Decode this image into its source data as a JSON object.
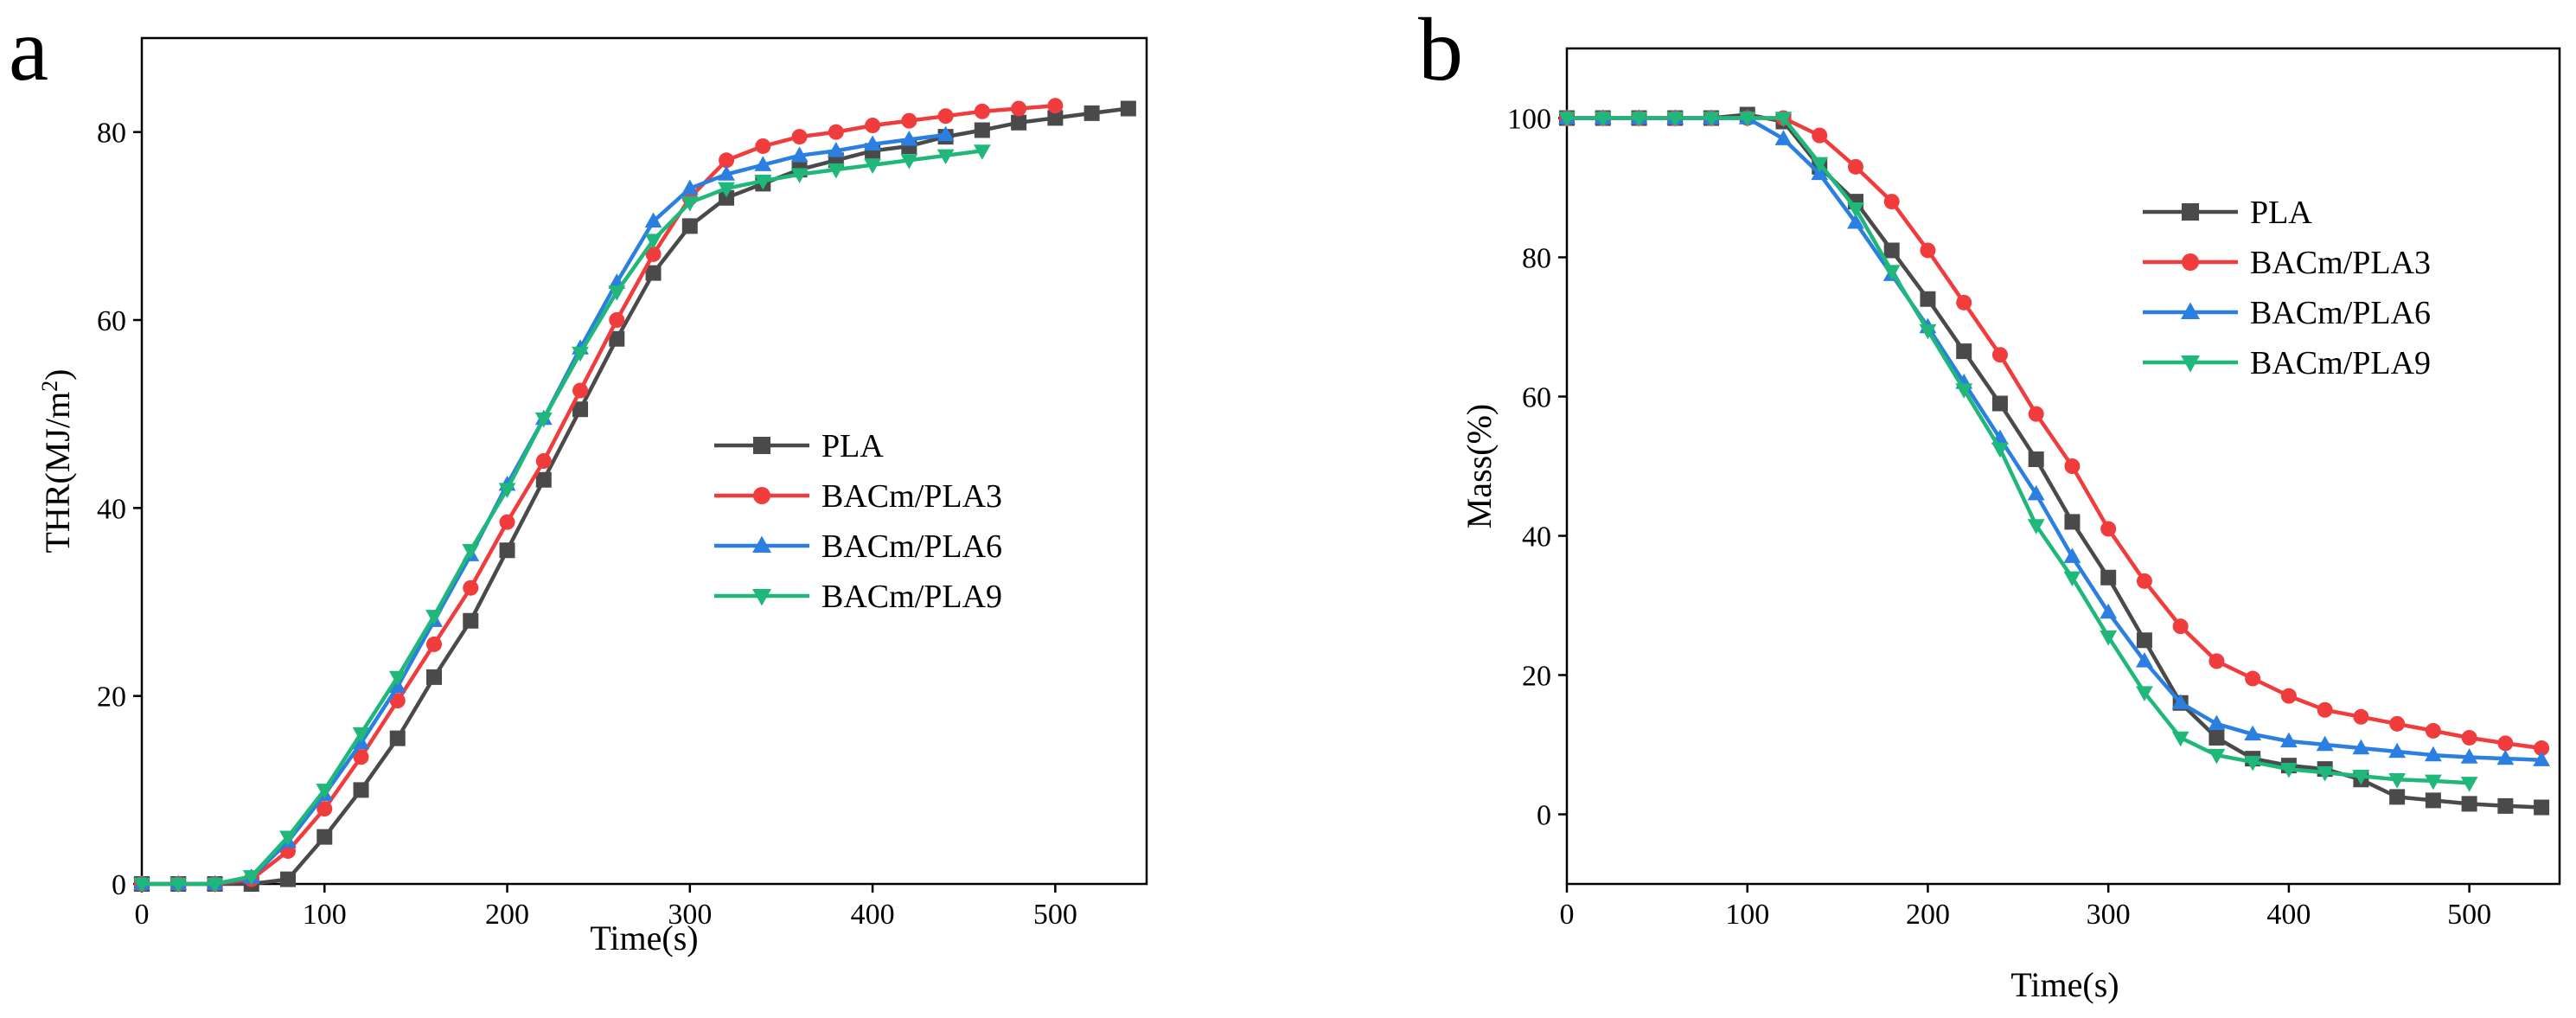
{
  "chart_data": [
    {
      "type": "line",
      "panel_label": "a",
      "xlabel": "Time(s)",
      "ylabel": "THR(MJ/m",
      "ylabel_sup": "2",
      "ylabel_end": ")",
      "xlim": [
        0,
        550
      ],
      "ylim": [
        0,
        90
      ],
      "xticks": [
        0,
        100,
        200,
        300,
        400,
        500
      ],
      "yticks": [
        0,
        20,
        40,
        60,
        80
      ],
      "legend_position": "center-right",
      "series": [
        {
          "name": "PLA",
          "color": "#4a4a4a",
          "marker": "square",
          "x": [
            0,
            20,
            40,
            60,
            80,
            100,
            120,
            140,
            160,
            180,
            200,
            220,
            240,
            260,
            280,
            300,
            320,
            340,
            360,
            380,
            400,
            420,
            440,
            460,
            480,
            500,
            520,
            540
          ],
          "y": [
            0,
            0,
            0,
            0,
            0.5,
            5,
            10,
            15.5,
            22,
            28,
            35.5,
            43,
            50.5,
            58,
            65,
            70,
            73,
            74.5,
            76,
            77,
            78,
            78.5,
            79.5,
            80.2,
            81,
            81.5,
            82,
            82.5
          ]
        },
        {
          "name": "BACm/PLA3",
          "color": "#f03c3c",
          "marker": "circle",
          "x": [
            0,
            20,
            40,
            60,
            80,
            100,
            120,
            140,
            160,
            180,
            200,
            220,
            240,
            260,
            280,
            300,
            320,
            340,
            360,
            380,
            400,
            420,
            440,
            460,
            480,
            500
          ],
          "y": [
            0,
            0,
            0,
            0.5,
            3.5,
            8,
            13.5,
            19.5,
            25.5,
            31.5,
            38.5,
            45,
            52.5,
            60,
            67,
            73,
            77,
            78.5,
            79.5,
            80,
            80.7,
            81.2,
            81.7,
            82.2,
            82.5,
            82.8
          ]
        },
        {
          "name": "BACm/PLA6",
          "color": "#2a7fe0",
          "marker": "triangle-up",
          "x": [
            0,
            20,
            40,
            60,
            80,
            100,
            120,
            140,
            160,
            180,
            200,
            220,
            240,
            260,
            280,
            300,
            320,
            340,
            360,
            380,
            400,
            420,
            440
          ],
          "y": [
            0,
            0,
            0,
            0.7,
            4.5,
            9.5,
            15,
            21,
            28,
            35,
            42.5,
            49.5,
            57,
            64,
            70.5,
            74,
            75.5,
            76.5,
            77.5,
            78,
            78.7,
            79.2,
            79.7
          ]
        },
        {
          "name": "BACm/PLA9",
          "color": "#1fb87a",
          "marker": "triangle-down",
          "x": [
            0,
            20,
            40,
            60,
            80,
            100,
            120,
            140,
            160,
            180,
            200,
            220,
            240,
            260,
            280,
            300,
            320,
            340,
            360,
            380,
            400,
            420,
            440,
            460
          ],
          "y": [
            0,
            0,
            0,
            0.8,
            5,
            10,
            16,
            22,
            28.5,
            35.5,
            42,
            49.5,
            56.5,
            63,
            68.5,
            72.5,
            74,
            74.8,
            75.5,
            76,
            76.5,
            77,
            77.5,
            78
          ]
        }
      ]
    },
    {
      "type": "line",
      "panel_label": "b",
      "xlabel": "Time(s)",
      "ylabel": "Mass(%)",
      "xlim": [
        0,
        550
      ],
      "ylim": [
        -10,
        110
      ],
      "xticks": [
        0,
        100,
        200,
        300,
        400,
        500
      ],
      "yticks": [
        0,
        20,
        40,
        60,
        80,
        100
      ],
      "legend_position": "upper-right",
      "series": [
        {
          "name": "PLA",
          "color": "#4a4a4a",
          "marker": "square",
          "x": [
            0,
            20,
            40,
            60,
            80,
            100,
            120,
            140,
            160,
            180,
            200,
            220,
            240,
            260,
            280,
            300,
            320,
            340,
            360,
            380,
            400,
            420,
            440,
            460,
            480,
            500,
            520,
            540
          ],
          "y": [
            100,
            100,
            100,
            100,
            100,
            100.5,
            99.5,
            93,
            88,
            81,
            74,
            66.5,
            59,
            51,
            42,
            34,
            25,
            16,
            11,
            8,
            7,
            6.5,
            5,
            2.5,
            2,
            1.5,
            1.2,
            1
          ]
        },
        {
          "name": "BACm/PLA3",
          "color": "#f03c3c",
          "marker": "circle",
          "x": [
            0,
            20,
            40,
            60,
            80,
            100,
            120,
            140,
            160,
            180,
            200,
            220,
            240,
            260,
            280,
            300,
            320,
            340,
            360,
            380,
            400,
            420,
            440,
            460,
            480,
            500,
            520,
            540
          ],
          "y": [
            100,
            100,
            100,
            100,
            100,
            100,
            100,
            97.5,
            93,
            88,
            81,
            73.5,
            66,
            57.5,
            50,
            41,
            33.5,
            27,
            22,
            19.5,
            17,
            15,
            14,
            13,
            12,
            11,
            10.2,
            9.5
          ]
        },
        {
          "name": "BACm/PLA6",
          "color": "#2a7fe0",
          "marker": "triangle-up",
          "x": [
            0,
            20,
            40,
            60,
            80,
            100,
            120,
            140,
            160,
            180,
            200,
            220,
            240,
            260,
            280,
            300,
            320,
            340,
            360,
            380,
            400,
            420,
            440,
            460,
            480,
            500,
            520,
            540
          ],
          "y": [
            100,
            100,
            100,
            100,
            100,
            100,
            97,
            92,
            85,
            77.5,
            70,
            62,
            54,
            46,
            37,
            29,
            22,
            16,
            13,
            11.5,
            10.5,
            10,
            9.5,
            9,
            8.5,
            8.2,
            8,
            7.8
          ]
        },
        {
          "name": "BACm/PLA9",
          "color": "#1fb87a",
          "marker": "triangle-down",
          "x": [
            0,
            20,
            40,
            60,
            80,
            100,
            120,
            140,
            160,
            180,
            200,
            220,
            240,
            260,
            280,
            300,
            320,
            340,
            360,
            380,
            400,
            420,
            440,
            460,
            480,
            500
          ],
          "y": [
            100,
            100,
            100,
            100,
            100,
            100,
            100,
            93.5,
            87,
            78,
            69.5,
            61,
            52.5,
            41.5,
            34,
            25.5,
            17.5,
            11,
            8.5,
            7.5,
            6.5,
            6,
            5.5,
            5,
            4.8,
            4.5
          ]
        }
      ]
    }
  ]
}
